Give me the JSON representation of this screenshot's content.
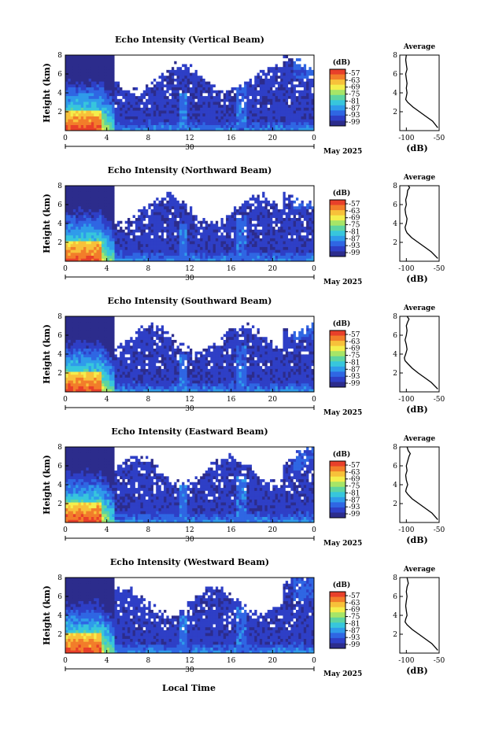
{
  "figure": {
    "xlabel": "Local Time",
    "date_day": "30",
    "date_month_year": "May 2025",
    "colorbar_unit": "(dB)",
    "colorbar_ticks": [
      "-57",
      "-63",
      "-69",
      "-75",
      "-81",
      "-87",
      "-93",
      "-99"
    ],
    "colorbar_colors": [
      "#e8402a",
      "#f27d2a",
      "#f7c13a",
      "#f4ee4c",
      "#a6e567",
      "#5ed4a0",
      "#37c6dc",
      "#2f9bea",
      "#2f66e3",
      "#2e3fc6",
      "#2c2c8c"
    ],
    "missing_color": "#ffffff",
    "profile_title": "Average",
    "profile_xlabel": "(dB)"
  },
  "chart_data": [
    {
      "type": "heatmap",
      "title": "Echo Intensity (Vertical Beam)",
      "ylabel": "Height (km)",
      "xlabel": "Local Time",
      "x_ticks": [
        "0",
        "4",
        "8",
        "12",
        "16",
        "20",
        "0"
      ],
      "y_ticks": [
        "2",
        "4",
        "6",
        "8"
      ],
      "xlim": [
        0,
        24
      ],
      "ylim": [
        0,
        8
      ],
      "zlim_dB": [
        -99,
        -57
      ],
      "profile": {
        "title": "Average",
        "xlabel": "(dB)",
        "x_ticks": [
          "-100",
          "-50"
        ],
        "y_ticks": [
          "2",
          "4",
          "6",
          "8"
        ],
        "xlim": [
          -110,
          -50
        ],
        "ylim": [
          0,
          8
        ],
        "height_km": [
          0.3,
          1.0,
          1.5,
          2.0,
          2.5,
          3.0,
          3.3,
          3.6,
          4.0,
          4.5,
          5.0,
          5.5,
          6.0,
          6.5,
          7.0,
          7.5,
          8.0
        ],
        "avg_dB": [
          -52,
          -60,
          -70,
          -80,
          -90,
          -98,
          -101,
          -100,
          -99,
          -100,
          -99,
          -100,
          -101,
          -99,
          -100,
          -101,
          -100
        ]
      }
    },
    {
      "type": "heatmap",
      "title": "Echo Intensity (Northward Beam)",
      "ylabel": "Height (km)",
      "xlabel": "Local Time",
      "x_ticks": [
        "0",
        "4",
        "8",
        "12",
        "16",
        "20",
        "0"
      ],
      "y_ticks": [
        "2",
        "4",
        "6",
        "8"
      ],
      "xlim": [
        0,
        24
      ],
      "ylim": [
        0,
        8
      ],
      "zlim_dB": [
        -99,
        -57
      ],
      "profile": {
        "title": "Average",
        "xlabel": "(dB)",
        "x_ticks": [
          "-100",
          "-50"
        ],
        "y_ticks": [
          "2",
          "4",
          "6",
          "8"
        ],
        "xlim": [
          -110,
          -50
        ],
        "ylim": [
          0,
          8
        ],
        "height_km": [
          0.3,
          1.0,
          1.5,
          2.0,
          2.5,
          3.0,
          3.3,
          3.6,
          4.0,
          4.5,
          5.0,
          5.5,
          6.0,
          6.5,
          7.0,
          7.5,
          7.8,
          8.0
        ],
        "avg_dB": [
          -52,
          -62,
          -72,
          -82,
          -92,
          -99,
          -101,
          -102,
          -100,
          -99,
          -101,
          -102,
          -100,
          -101,
          -99,
          -98,
          -95,
          -97
        ]
      }
    },
    {
      "type": "heatmap",
      "title": "Echo Intensity (Southward Beam)",
      "ylabel": "Height (km)",
      "xlabel": "Local Time",
      "x_ticks": [
        "0",
        "4",
        "8",
        "12",
        "16",
        "20",
        "0"
      ],
      "y_ticks": [
        "2",
        "4",
        "6",
        "8"
      ],
      "xlim": [
        0,
        24
      ],
      "ylim": [
        0,
        8
      ],
      "zlim_dB": [
        -99,
        -57
      ],
      "profile": {
        "title": "Average",
        "xlabel": "(dB)",
        "x_ticks": [
          "-100",
          "-50"
        ],
        "y_ticks": [
          "2",
          "4",
          "6",
          "8"
        ],
        "xlim": [
          -110,
          -50
        ],
        "ylim": [
          0,
          8
        ],
        "height_km": [
          0.3,
          1.0,
          1.5,
          2.0,
          2.5,
          3.0,
          3.3,
          3.6,
          4.0,
          4.5,
          5.0,
          5.5,
          6.0,
          6.5,
          7.0,
          7.4,
          7.7,
          8.0
        ],
        "avg_dB": [
          -52,
          -62,
          -72,
          -82,
          -91,
          -98,
          -102,
          -103,
          -101,
          -99,
          -100,
          -102,
          -100,
          -99,
          -100,
          -98,
          -96,
          -99
        ]
      }
    },
    {
      "type": "heatmap",
      "title": "Echo Intensity (Eastward Beam)",
      "ylabel": "Height (km)",
      "xlabel": "Local Time",
      "x_ticks": [
        "0",
        "4",
        "8",
        "12",
        "16",
        "20",
        "0"
      ],
      "y_ticks": [
        "2",
        "4",
        "6",
        "8"
      ],
      "xlim": [
        0,
        24
      ],
      "ylim": [
        0,
        8
      ],
      "zlim_dB": [
        -99,
        -57
      ],
      "profile": {
        "title": "Average",
        "xlabel": "(dB)",
        "x_ticks": [
          "-100",
          "-50"
        ],
        "y_ticks": [
          "2",
          "4",
          "6",
          "8"
        ],
        "xlim": [
          -110,
          -50
        ],
        "ylim": [
          0,
          8
        ],
        "height_km": [
          0.3,
          1.0,
          1.5,
          2.0,
          2.5,
          3.0,
          3.3,
          3.6,
          4.0,
          4.5,
          5.0,
          5.5,
          6.0,
          6.5,
          7.0,
          7.3,
          7.6,
          8.0
        ],
        "avg_dB": [
          -52,
          -61,
          -71,
          -81,
          -91,
          -98,
          -101,
          -100,
          -98,
          -100,
          -101,
          -99,
          -100,
          -98,
          -96,
          -94,
          -97,
          -99
        ]
      }
    },
    {
      "type": "heatmap",
      "title": "Echo Intensity (Westward Beam)",
      "ylabel": "Height (km)",
      "xlabel": "Local Time",
      "x_ticks": [
        "0",
        "4",
        "8",
        "12",
        "16",
        "20",
        "0"
      ],
      "y_ticks": [
        "2",
        "4",
        "6",
        "8"
      ],
      "xlim": [
        0,
        24
      ],
      "ylim": [
        0,
        8
      ],
      "zlim_dB": [
        -99,
        -57
      ],
      "profile": {
        "title": "Average",
        "xlabel": "(dB)",
        "x_ticks": [
          "-100",
          "-50"
        ],
        "y_ticks": [
          "2",
          "4",
          "6",
          "8"
        ],
        "xlim": [
          -110,
          -50
        ],
        "ylim": [
          0,
          8
        ],
        "height_km": [
          0.3,
          1.0,
          1.5,
          2.0,
          2.5,
          3.0,
          3.3,
          3.6,
          4.0,
          4.5,
          5.0,
          5.5,
          6.0,
          6.5,
          7.0,
          7.4,
          7.7,
          8.0
        ],
        "avg_dB": [
          -52,
          -61,
          -71,
          -81,
          -91,
          -99,
          -102,
          -101,
          -99,
          -100,
          -101,
          -100,
          -99,
          -100,
          -99,
          -97,
          -98,
          -99
        ]
      }
    }
  ]
}
